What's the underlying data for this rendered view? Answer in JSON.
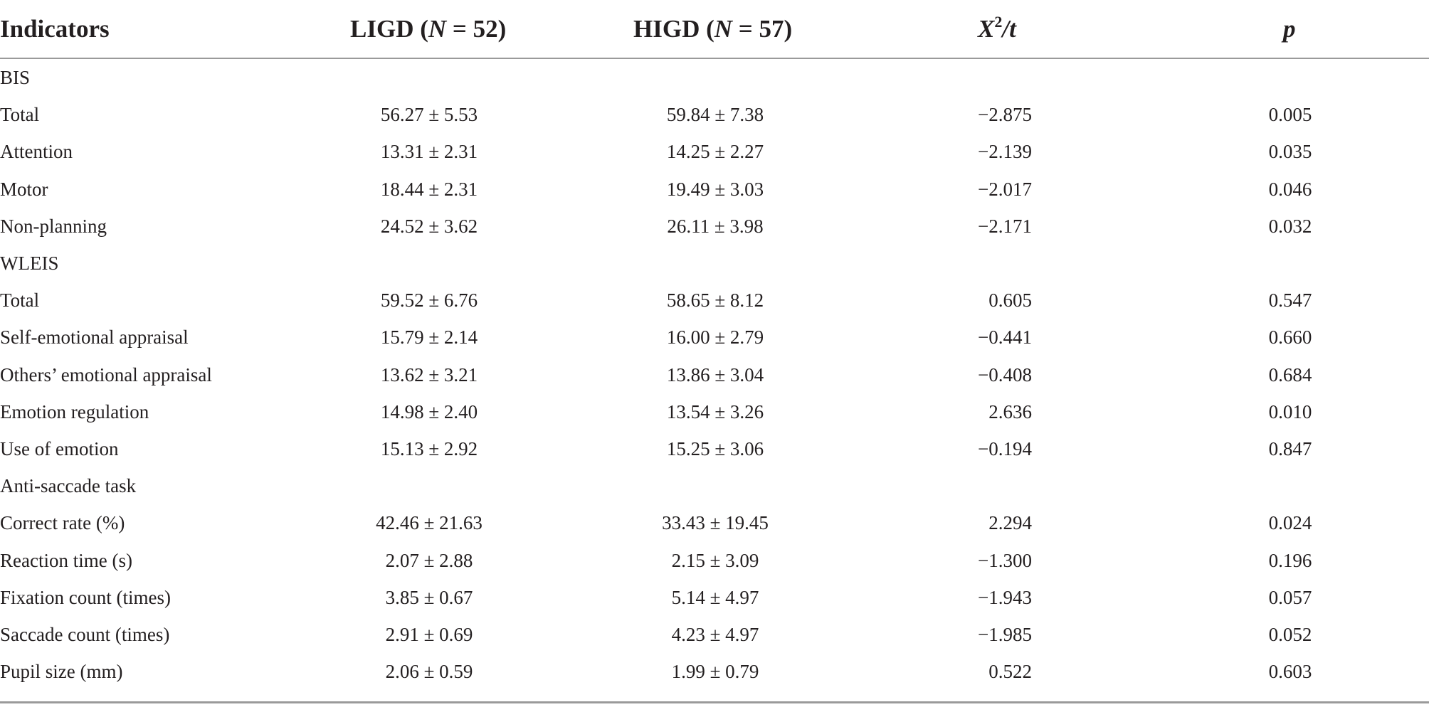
{
  "header": {
    "indicators": "Indicators",
    "ligd_name": "LIGD (",
    "ligd_n_var": "N",
    "ligd_n_val": " = 52)",
    "higd_name": "HIGD (",
    "higd_n_var": "N",
    "higd_n_val": " = 57)",
    "stat_x": "X",
    "stat_sup": "2",
    "stat_t": "/t",
    "p": "p"
  },
  "rows": [
    {
      "label": "BIS",
      "ligd": "",
      "higd": "",
      "stat": "",
      "p": ""
    },
    {
      "label": "Total",
      "ligd": "56.27 ± 5.53",
      "higd": "59.84 ± 7.38",
      "stat": "−2.875",
      "p": "0.005"
    },
    {
      "label": "Attention",
      "ligd": "13.31 ± 2.31",
      "higd": "14.25 ± 2.27",
      "stat": "−2.139",
      "p": "0.035"
    },
    {
      "label": "Motor",
      "ligd": "18.44 ± 2.31",
      "higd": "19.49 ± 3.03",
      "stat": "−2.017",
      "p": "0.046"
    },
    {
      "label": "Non-planning",
      "ligd": "24.52 ± 3.62",
      "higd": "26.11 ± 3.98",
      "stat": "−2.171",
      "p": "0.032"
    },
    {
      "label": "WLEIS",
      "ligd": "",
      "higd": "",
      "stat": "",
      "p": ""
    },
    {
      "label": "Total",
      "ligd": "59.52 ± 6.76",
      "higd": "58.65 ± 8.12",
      "stat": "0.605",
      "p": "0.547"
    },
    {
      "label": "Self-emotional appraisal",
      "ligd": "15.79 ± 2.14",
      "higd": "16.00 ± 2.79",
      "stat": "−0.441",
      "p": "0.660"
    },
    {
      "label": "Others’ emotional appraisal",
      "ligd": "13.62 ± 3.21",
      "higd": "13.86 ± 3.04",
      "stat": "−0.408",
      "p": "0.684"
    },
    {
      "label": "Emotion regulation",
      "ligd": "14.98 ± 2.40",
      "higd": "13.54 ± 3.26",
      "stat": "2.636",
      "p": "0.010"
    },
    {
      "label": "Use of emotion",
      "ligd": "15.13 ± 2.92",
      "higd": "15.25 ± 3.06",
      "stat": "−0.194",
      "p": "0.847"
    },
    {
      "label": "Anti-saccade task",
      "ligd": "",
      "higd": "",
      "stat": "",
      "p": ""
    },
    {
      "label": "Correct rate (%)",
      "ligd": "42.46 ± 21.63",
      "higd": "33.43 ± 19.45",
      "stat": "2.294",
      "p": "0.024"
    },
    {
      "label": "Reaction time (s)",
      "ligd": "2.07 ± 2.88",
      "higd": "2.15 ± 3.09",
      "stat": "−1.300",
      "p": "0.196"
    },
    {
      "label": "Fixation count (times)",
      "ligd": "3.85 ± 0.67",
      "higd": "5.14 ± 4.97",
      "stat": "−1.943",
      "p": "0.057"
    },
    {
      "label": "Saccade count (times)",
      "ligd": "2.91 ± 0.69",
      "higd": "4.23 ± 4.97",
      "stat": "−1.985",
      "p": "0.052"
    },
    {
      "label": "Pupil size (mm)",
      "ligd": "2.06 ± 0.59",
      "higd": "1.99 ± 0.79",
      "stat": "0.522",
      "p": "0.603"
    }
  ]
}
